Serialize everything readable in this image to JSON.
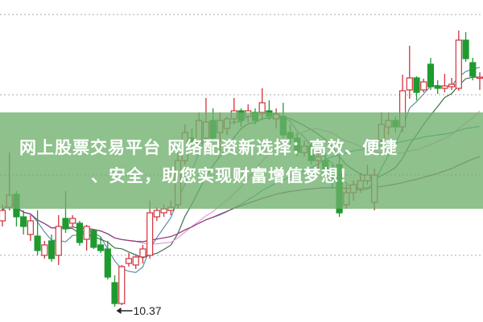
{
  "banner": {
    "line1": "网上股票交易平台 网络配资新选择：高效、便捷",
    "line2": "、安全，助您实现财富增值梦想！"
  },
  "chart_data": {
    "type": "candlestick",
    "ylim": [
      10.18,
      14.19
    ],
    "gridlines": [
      14.01,
      13.01,
      12.01,
      11.01
    ],
    "grid": true,
    "colors": {
      "up": "#d2323c",
      "down": "#1f9a2f",
      "ma": [
        "#5f8ea6",
        "#3f6e4c",
        "#e79ad9",
        "#3c9bb3",
        "#9a3b7c"
      ]
    },
    "moving_averages": [
      5,
      10,
      20,
      30,
      60
    ],
    "annotation": {
      "label": "10.37",
      "value": 10.37,
      "candle_index": 16
    },
    "ohlc": [
      [
        11.44,
        11.57,
        11.64,
        11.37
      ],
      [
        11.61,
        11.76,
        12.29,
        11.57
      ],
      [
        11.77,
        11.49,
        11.81,
        11.37
      ],
      [
        11.49,
        11.37,
        11.57,
        11.27
      ],
      [
        11.27,
        11.44,
        11.51,
        11.19
      ],
      [
        11.25,
        11.07,
        11.57,
        11.01
      ],
      [
        11.01,
        11.14,
        11.19,
        10.97
      ],
      [
        11.19,
        10.97,
        11.27,
        10.93
      ],
      [
        11.01,
        11.37,
        11.51,
        10.89
      ],
      [
        11.47,
        11.34,
        11.81,
        11.29
      ],
      [
        11.41,
        11.47,
        11.51,
        11.37
      ],
      [
        11.41,
        11.17,
        11.44,
        11.13
      ],
      [
        11.21,
        11.37,
        11.39,
        11.07
      ],
      [
        11.32,
        11.11,
        11.34,
        11.09
      ],
      [
        11.14,
        11.07,
        11.24,
        11.04
      ],
      [
        11.09,
        10.74,
        11.19,
        10.71
      ],
      [
        10.67,
        10.41,
        10.76,
        10.37
      ],
      [
        10.41,
        10.87,
        10.89,
        10.39
      ],
      [
        10.91,
        10.97,
        11.04,
        10.87
      ],
      [
        10.89,
        10.99,
        11.01,
        10.84
      ],
      [
        10.99,
        11.09,
        11.14,
        10.91
      ],
      [
        11.01,
        11.54,
        11.69,
        10.97
      ],
      [
        11.49,
        11.57,
        11.61,
        11.44
      ],
      [
        11.54,
        11.59,
        11.64,
        11.49
      ],
      [
        11.57,
        11.61,
        11.69,
        11.51
      ],
      [
        11.64,
        12.19,
        12.29,
        11.59
      ],
      [
        12.19,
        12.54,
        12.64,
        12.14
      ],
      [
        12.47,
        12.41,
        12.59,
        12.34
      ],
      [
        12.41,
        12.69,
        12.79,
        12.34
      ],
      [
        12.47,
        12.67,
        12.97,
        12.41
      ],
      [
        12.69,
        12.47,
        12.84,
        12.44
      ],
      [
        12.54,
        12.69,
        12.79,
        12.29
      ],
      [
        12.59,
        12.71,
        12.74,
        12.51
      ],
      [
        12.71,
        12.81,
        12.97,
        12.64
      ],
      [
        12.81,
        12.69,
        12.84,
        12.61
      ],
      [
        12.74,
        12.81,
        12.89,
        12.67
      ],
      [
        12.79,
        12.69,
        12.84,
        12.64
      ],
      [
        12.79,
        12.91,
        13.09,
        12.69
      ],
      [
        12.81,
        12.74,
        12.94,
        12.69
      ],
      [
        12.71,
        12.77,
        12.84,
        12.59
      ],
      [
        12.74,
        12.51,
        12.91,
        12.47
      ],
      [
        12.54,
        12.47,
        12.64,
        12.39
      ],
      [
        12.47,
        12.29,
        12.54,
        12.24
      ],
      [
        12.29,
        12.37,
        12.44,
        12.24
      ],
      [
        12.37,
        12.19,
        12.44,
        12.14
      ],
      [
        12.19,
        12.24,
        12.34,
        12.09
      ],
      [
        12.19,
        12.04,
        12.29,
        11.99
      ],
      [
        12.04,
        11.94,
        12.14,
        11.84
      ],
      [
        12.14,
        11.54,
        12.24,
        11.49
      ],
      [
        11.64,
        11.79,
        11.89,
        11.59
      ],
      [
        11.79,
        11.89,
        11.94,
        11.69
      ],
      [
        11.84,
        11.94,
        12.04,
        11.79
      ],
      [
        11.94,
        12.01,
        12.14,
        11.89
      ],
      [
        11.67,
        12.01,
        12.09,
        11.57
      ],
      [
        12.44,
        12.64,
        12.79,
        12.39
      ],
      [
        12.61,
        12.69,
        12.79,
        12.51
      ],
      [
        12.69,
        12.61,
        12.74,
        12.54
      ],
      [
        12.61,
        13.06,
        13.26,
        12.54
      ],
      [
        13.07,
        13.22,
        13.62,
        12.96
      ],
      [
        13.22,
        13.04,
        13.24,
        12.94
      ],
      [
        13.07,
        13.17,
        13.21,
        13.04
      ],
      [
        13.39,
        13.11,
        13.47,
        13.07
      ],
      [
        13.12,
        13.09,
        13.19,
        13.02
      ],
      [
        13.09,
        13.12,
        13.27,
        13.04
      ],
      [
        13.11,
        13.14,
        13.22,
        13.07
      ],
      [
        13.09,
        13.69,
        13.81,
        13.06
      ],
      [
        13.69,
        13.46,
        13.79,
        13.42
      ],
      [
        13.41,
        13.24,
        13.47,
        13.19
      ],
      [
        13.22,
        13.23,
        13.29,
        13.07
      ]
    ]
  }
}
